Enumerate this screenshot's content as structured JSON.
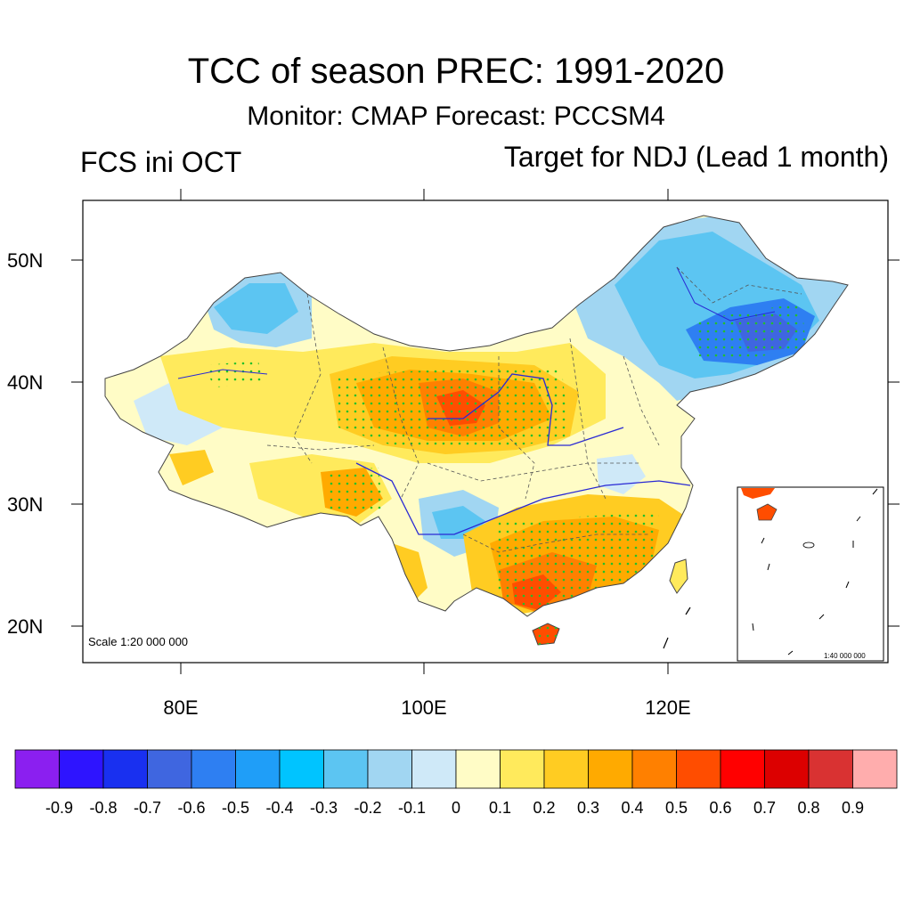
{
  "header": {
    "title": "TCC of season PREC: 1991-2020",
    "subtitle": "Monitor: CMAP   Forecast: PCCSM4",
    "left_label": "FCS ini OCT",
    "right_label": "Target for NDJ (Lead 1 month)"
  },
  "map": {
    "lat_labels": [
      "50N",
      "40N",
      "30N",
      "20N"
    ],
    "lon_labels": [
      "80E",
      "100E",
      "120E"
    ],
    "scale_label": "Scale 1:20 000 000",
    "inset_scale_label": "1:40 000 000"
  },
  "colorbar": {
    "colors": [
      "#8b1ff0",
      "#2e14ff",
      "#1930f0",
      "#3f66e0",
      "#2e7ff2",
      "#1f9ef8",
      "#00c4ff",
      "#5cc5f2",
      "#a1d6f2",
      "#cfe9f8",
      "#fffcc6",
      "#ffea5c",
      "#ffcc22",
      "#ffaa00",
      "#ff8000",
      "#ff4d00",
      "#ff0000",
      "#dc0000",
      "#d93232",
      "#ffadad"
    ],
    "labels": [
      "-0.9",
      "-0.8",
      "-0.7",
      "-0.6",
      "-0.5",
      "-0.4",
      "-0.3",
      "-0.2",
      "-0.1",
      "0",
      "0.1",
      "0.2",
      "0.3",
      "0.4",
      "0.5",
      "0.6",
      "0.7",
      "0.8",
      "0.9"
    ]
  }
}
